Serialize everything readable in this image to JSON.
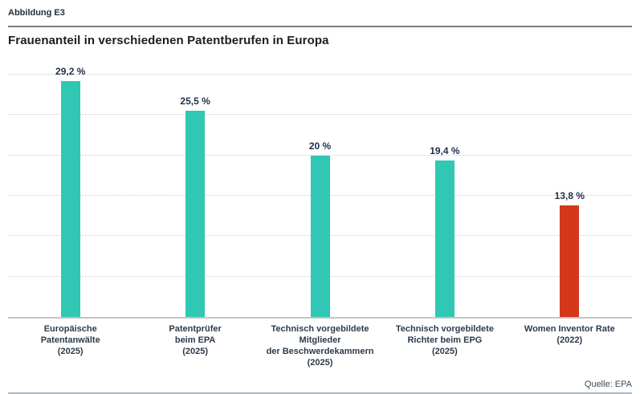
{
  "figure": {
    "label": "Abbildung E3",
    "title": "Frauenanteil in verschiedenen Patentberufen in Europa",
    "source": "Quelle: EPA"
  },
  "colors": {
    "bar_teal": "#30c7b5",
    "bar_red": "#d4371b",
    "text_dark_navy": "#2c3b4d",
    "gridline": "#cccccc",
    "baseline": "#c4c4c4",
    "top_rule": "#7c7c7c",
    "bottom_rule": "#b0b6bb"
  },
  "chart_data": {
    "type": "bar",
    "title": "Frauenanteil in verschiedenen Patentberufen in Europa",
    "xlabel": "",
    "ylabel": "",
    "ylim": [
      0,
      30
    ],
    "grid_step": 5,
    "grid": "horizontal dotted lines every 5 %, no y-axis tick labels, no y-axis line",
    "legend": "none",
    "categories": [
      "Europäische Patentanwälte (2025)",
      "Patentprüfer beim EPA (2025)",
      "Technisch vorgebildete Mitglieder der Beschwerdekammern (2025)",
      "Technisch vorgebildete Richter beim EPG (2025)",
      "Women Inventor Rate (2022)"
    ],
    "values": [
      29.2,
      25.5,
      20,
      19.4,
      13.8
    ],
    "bars": [
      {
        "category_lines": "Europäische\nPatentanwälte\n(2025)",
        "value": 29.2,
        "value_label": "29,2 %",
        "color": "#30c7b5"
      },
      {
        "category_lines": "Patentprüfer\nbeim EPA\n(2025)",
        "value": 25.5,
        "value_label": "25,5 %",
        "color": "#30c7b5"
      },
      {
        "category_lines": "Technisch vorgebildete Mitglieder\nder Beschwerdekammern\n(2025)",
        "value": 20,
        "value_label": "20 %",
        "color": "#30c7b5"
      },
      {
        "category_lines": "Technisch vorgebildete\nRichter beim EPG\n(2025)",
        "value": 19.4,
        "value_label": "19,4 %",
        "color": "#30c7b5"
      },
      {
        "category_lines": "Women Inventor Rate\n(2022)",
        "value": 13.8,
        "value_label": "13,8 %",
        "color": "#d4371b"
      }
    ]
  }
}
